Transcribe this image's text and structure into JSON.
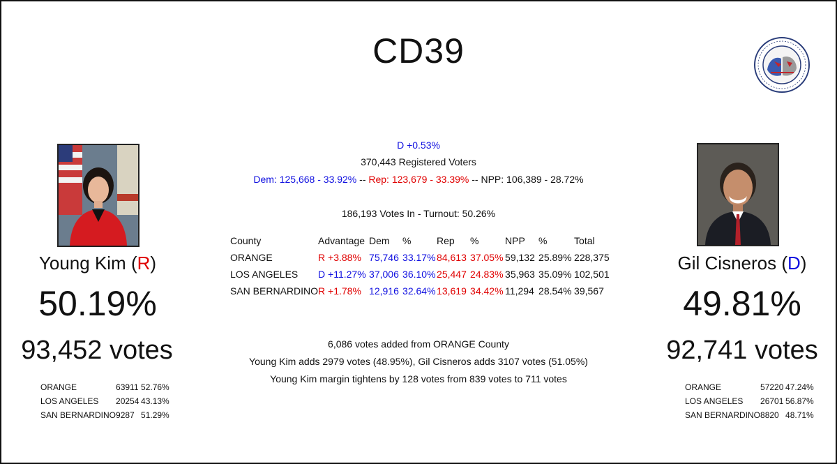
{
  "title": "CD39",
  "logo": {
    "icon": "california-target-book-logo-icon",
    "text_top": "CALIFORNIA TARGET BOOK",
    "text_bottom": "25TH ANNIVERSARY"
  },
  "left": {
    "name": "Young Kim",
    "party": "R",
    "pct": "50.19%",
    "votes": "93,452 votes",
    "counties": [
      {
        "county": "ORANGE",
        "votes": "63911",
        "pct": "52.76%"
      },
      {
        "county": "LOS ANGELES",
        "votes": "20254",
        "pct": "43.13%"
      },
      {
        "county": "SAN BERNARDINO",
        "votes": "9287",
        "pct": "51.29%"
      }
    ]
  },
  "right": {
    "name": "Gil Cisneros",
    "party": "D",
    "pct": "49.81%",
    "votes": "92,741 votes",
    "counties": [
      {
        "county": "ORANGE",
        "votes": "57220",
        "pct": "47.24%"
      },
      {
        "county": "LOS ANGELES",
        "votes": "26701",
        "pct": "56.87%"
      },
      {
        "county": "SAN BERNARDINO",
        "votes": "8820",
        "pct": "48.71%"
      }
    ]
  },
  "registration": {
    "advantage": "D +0.53%",
    "registered": "370,443 Registered Voters",
    "dem": "Dem: 125,668 - 33.92%",
    "sep1": " -- ",
    "rep": "Rep: 123,679 - 33.39%",
    "sep2": " -- ",
    "npp": "NPP: 106,389 - 28.72%"
  },
  "turnout": "186,193 Votes In - Turnout: 50.26%",
  "table": {
    "headers": {
      "county": "County",
      "advantage": "Advantage",
      "dem": "Dem",
      "dem_pct": "%",
      "rep": "Rep",
      "rep_pct": "%",
      "npp": "NPP",
      "npp_pct": "%",
      "total": "Total"
    },
    "rows": [
      {
        "county": "ORANGE",
        "advantage": "R +3.88%",
        "dem": "75,746",
        "dem_pct": "33.17%",
        "rep": "84,613",
        "rep_pct": "37.05%",
        "npp": "59,132",
        "npp_pct": "25.89%",
        "total": "228,375"
      },
      {
        "county": "LOS ANGELES",
        "advantage": "D +11.27%",
        "dem": "37,006",
        "dem_pct": "36.10%",
        "rep": "25,447",
        "rep_pct": "24.83%",
        "npp": "35,963",
        "npp_pct": "35.09%",
        "total": "102,501"
      },
      {
        "county": "SAN BERNARDINO",
        "advantage": "R +1.78%",
        "dem": "12,916",
        "dem_pct": "32.64%",
        "rep": "13,619",
        "rep_pct": "34.42%",
        "npp": "11,294",
        "npp_pct": "28.54%",
        "total": "39,567"
      }
    ]
  },
  "update": {
    "line1": "6,086 votes added from ORANGE County",
    "line2": "Young Kim adds 2979 votes (48.95%), Gil Cisneros adds 3107 votes (51.05%)",
    "line3": "Young Kim margin tightens by 128 votes from 839 votes to 711 votes"
  },
  "colors": {
    "dem": "#1010e0",
    "rep": "#e00000"
  }
}
